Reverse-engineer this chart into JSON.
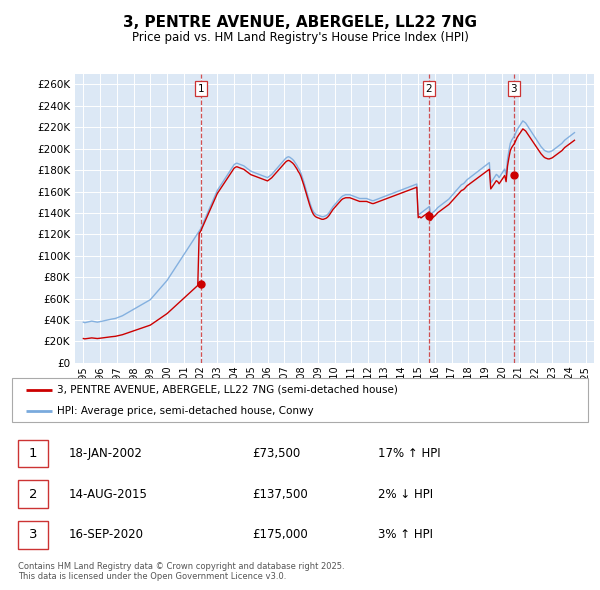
{
  "title": "3, PENTRE AVENUE, ABERGELE, LL22 7NG",
  "subtitle": "Price paid vs. HM Land Registry's House Price Index (HPI)",
  "title_fontsize": 13,
  "subtitle_fontsize": 10,
  "ylabel_ticks": [
    "£0",
    "£20K",
    "£40K",
    "£60K",
    "£80K",
    "£100K",
    "£120K",
    "£140K",
    "£160K",
    "£180K",
    "£200K",
    "£220K",
    "£240K",
    "£260K"
  ],
  "ytick_values": [
    0,
    20000,
    40000,
    60000,
    80000,
    100000,
    120000,
    140000,
    160000,
    180000,
    200000,
    220000,
    240000,
    260000
  ],
  "ylim": [
    0,
    270000
  ],
  "xlim_start": 1994.5,
  "xlim_end": 2025.5,
  "xticks": [
    1995,
    1996,
    1997,
    1998,
    1999,
    2000,
    2001,
    2002,
    2003,
    2004,
    2005,
    2006,
    2007,
    2008,
    2009,
    2010,
    2011,
    2012,
    2013,
    2014,
    2015,
    2016,
    2017,
    2018,
    2019,
    2020,
    2021,
    2022,
    2023,
    2024,
    2025
  ],
  "background_color": "#dce8f5",
  "grid_color": "#ffffff",
  "line_color_red": "#cc0000",
  "line_color_blue": "#7aaadd",
  "purchase_color": "#cc0000",
  "vline_color": "#cc3333",
  "legend_label_red": "3, PENTRE AVENUE, ABERGELE, LL22 7NG (semi-detached house)",
  "legend_label_blue": "HPI: Average price, semi-detached house, Conwy",
  "purchases": [
    {
      "num": 1,
      "date_x": 2002.05,
      "price": 73500,
      "text": "18-JAN-2002",
      "price_str": "£73,500",
      "pct": "17% ↑ HPI"
    },
    {
      "num": 2,
      "date_x": 2015.62,
      "price": 137500,
      "text": "14-AUG-2015",
      "price_str": "£137,500",
      "pct": "2% ↓ HPI"
    },
    {
      "num": 3,
      "date_x": 2020.71,
      "price": 175000,
      "text": "16-SEP-2020",
      "price_str": "£175,000",
      "pct": "3% ↑ HPI"
    }
  ],
  "footnote": "Contains HM Land Registry data © Crown copyright and database right 2025.\nThis data is licensed under the Open Government Licence v3.0.",
  "hpi_y": [
    38000,
    37500,
    37800,
    38200,
    38500,
    38800,
    39000,
    38800,
    38500,
    38200,
    38000,
    38200,
    38500,
    38800,
    39200,
    39500,
    39800,
    40000,
    40200,
    40500,
    40800,
    41000,
    41200,
    41500,
    42000,
    42500,
    43000,
    43500,
    44000,
    44800,
    45500,
    46200,
    47000,
    47800,
    48500,
    49200,
    50000,
    50800,
    51500,
    52200,
    53000,
    53800,
    54500,
    55200,
    56000,
    56800,
    57500,
    58200,
    59000,
    60500,
    62000,
    63500,
    65000,
    66500,
    68000,
    69500,
    71000,
    72500,
    74000,
    75500,
    77000,
    79000,
    81000,
    83000,
    85000,
    87000,
    89000,
    91000,
    93000,
    95000,
    97000,
    99000,
    101000,
    103000,
    105000,
    107000,
    109000,
    111000,
    113000,
    115000,
    117000,
    119000,
    121000,
    123000,
    125000,
    128000,
    131000,
    134000,
    137000,
    140000,
    143000,
    146000,
    149000,
    152000,
    155000,
    158000,
    161000,
    163000,
    165000,
    167000,
    169000,
    171000,
    173000,
    175000,
    177000,
    179000,
    181000,
    183000,
    185000,
    186000,
    186500,
    186000,
    185500,
    185000,
    184500,
    184000,
    183000,
    182000,
    181000,
    180000,
    179000,
    178500,
    178000,
    177500,
    177000,
    176500,
    176000,
    175500,
    175000,
    174500,
    174000,
    173500,
    173000,
    174000,
    175000,
    176000,
    177500,
    179000,
    180500,
    182000,
    183500,
    185000,
    186500,
    188000,
    189500,
    191000,
    192000,
    192500,
    192000,
    191000,
    190000,
    188500,
    186500,
    184500,
    182000,
    180000,
    177000,
    173000,
    169000,
    164500,
    160000,
    155500,
    151000,
    147000,
    143500,
    141000,
    139500,
    138500,
    138000,
    137500,
    137000,
    136500,
    136500,
    137000,
    137500,
    138500,
    140000,
    142000,
    144000,
    146000,
    147500,
    149000,
    150500,
    152000,
    153500,
    155000,
    156000,
    156500,
    157000,
    157000,
    157000,
    157000,
    156500,
    156000,
    155500,
    155000,
    154500,
    154000,
    153500,
    153500,
    153500,
    153500,
    153500,
    153500,
    153000,
    152500,
    152000,
    151500,
    151500,
    152000,
    152500,
    153000,
    153500,
    154000,
    154500,
    155000,
    155500,
    156000,
    156500,
    157000,
    157500,
    158000,
    158500,
    159000,
    159500,
    160000,
    160500,
    161000,
    161500,
    162000,
    162500,
    163000,
    163500,
    164000,
    164500,
    165000,
    165500,
    166000,
    166500,
    167000,
    138000,
    139000,
    140000,
    141000,
    142000,
    143000,
    144000,
    145000,
    146000,
    137500,
    140000,
    141000,
    142000,
    143500,
    145000,
    146000,
    147000,
    148000,
    149000,
    150000,
    151000,
    152000,
    153000,
    154500,
    156000,
    157500,
    159000,
    160500,
    162000,
    163500,
    165000,
    166500,
    167000,
    168000,
    169500,
    171000,
    172000,
    173000,
    174000,
    175000,
    176000,
    177000,
    178000,
    179000,
    180000,
    181000,
    182000,
    183000,
    184000,
    185000,
    186000,
    187000,
    168000,
    170000,
    172000,
    174000,
    176000,
    175000,
    173000,
    175000,
    177000,
    179000,
    181000,
    175000,
    190000,
    198000,
    205000,
    208000,
    210000,
    212000,
    215000,
    218000,
    220000,
    222000,
    224000,
    226000,
    225000,
    224000,
    222000,
    220000,
    218000,
    216000,
    214000,
    212000,
    210000,
    208000,
    206000,
    204000,
    202000,
    200500,
    199000,
    198000,
    197500,
    197000,
    197000,
    197500,
    198000,
    199000,
    200000,
    201000,
    202000,
    203000,
    204000,
    205000,
    206500,
    208000,
    209000,
    210000,
    211000,
    212000,
    213000,
    214000,
    215000
  ]
}
